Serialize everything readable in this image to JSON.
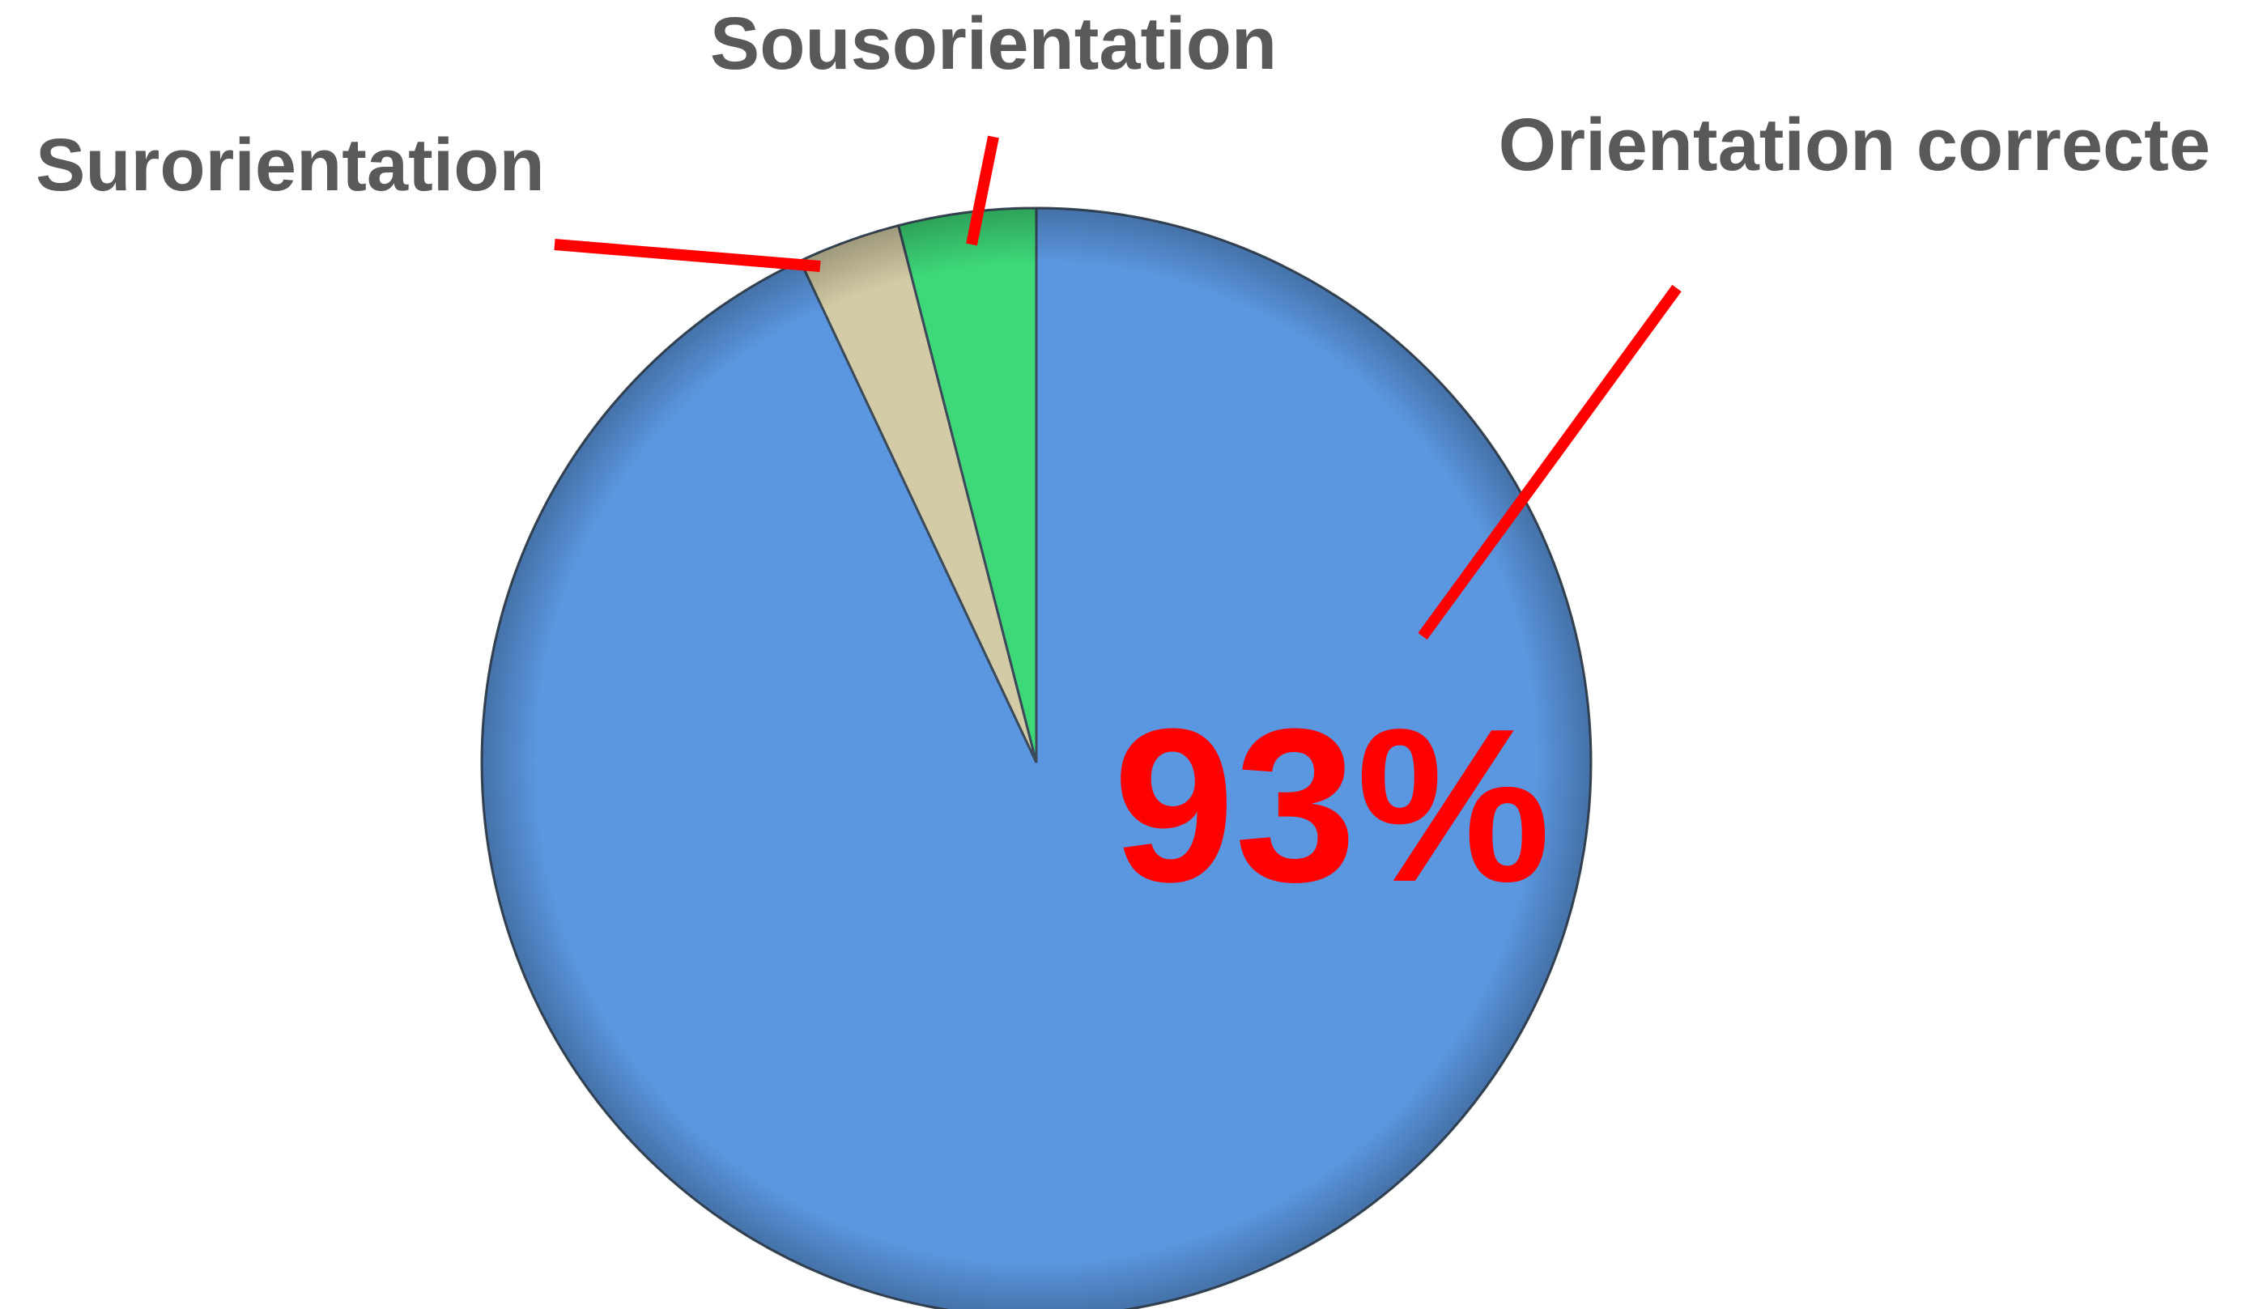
{
  "chart_data": {
    "type": "pie",
    "categories": [
      "Orientation correcte",
      "Surorientation",
      "Sousorientation"
    ],
    "values": [
      93,
      3,
      4
    ],
    "value_labels": [
      "93%",
      null,
      null
    ],
    "colors": [
      "#5b97e0",
      "#d3cba5",
      "#3dd878"
    ]
  }
}
